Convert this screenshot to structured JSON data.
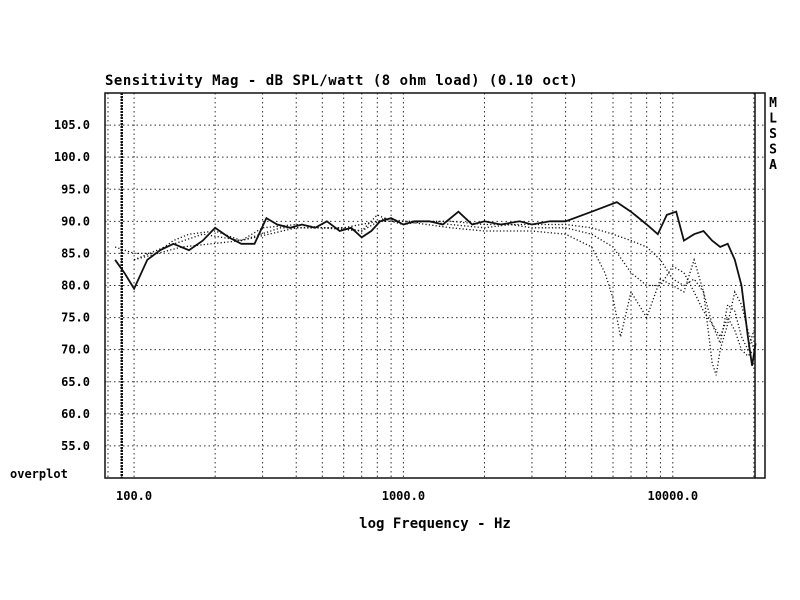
{
  "chart_data": {
    "type": "line",
    "title": "Sensitivity Mag - dB SPL/watt (8 ohm load) (0.10 oct)",
    "xlabel": "log Frequency - Hz",
    "ylabel": "",
    "x_scale": "log",
    "xlim": [
      78,
      22000
    ],
    "ylim": [
      50,
      110
    ],
    "x_ticks": [
      100,
      1000,
      10000
    ],
    "x_tick_labels": [
      "100.0",
      "1000.0",
      "10000.0"
    ],
    "y_ticks": [
      55,
      60,
      65,
      70,
      75,
      80,
      85,
      90,
      95,
      100,
      105
    ],
    "y_tick_labels": [
      "55.0",
      "60.0",
      "65.0",
      "70.0",
      "75.0",
      "80.0",
      "85.0",
      "90.0",
      "95.0",
      "100.0",
      "105.0"
    ],
    "bottom_label": "overplot",
    "side_letters": [
      "M",
      "L",
      "S",
      "S",
      "A"
    ],
    "grid": true,
    "series": [
      {
        "style": "solid",
        "points": [
          [
            85,
            84
          ],
          [
            92,
            82
          ],
          [
            100,
            79.5
          ],
          [
            112,
            84
          ],
          [
            125,
            85.5
          ],
          [
            140,
            86.5
          ],
          [
            160,
            85.5
          ],
          [
            180,
            87
          ],
          [
            200,
            89
          ],
          [
            225,
            87.5
          ],
          [
            250,
            86.5
          ],
          [
            280,
            86.5
          ],
          [
            310,
            90.5
          ],
          [
            340,
            89.5
          ],
          [
            380,
            89
          ],
          [
            420,
            89.5
          ],
          [
            470,
            89
          ],
          [
            520,
            90
          ],
          [
            580,
            88.5
          ],
          [
            640,
            89
          ],
          [
            700,
            87.5
          ],
          [
            760,
            88.5
          ],
          [
            820,
            90
          ],
          [
            900,
            90.5
          ],
          [
            1000,
            89.5
          ],
          [
            1100,
            90
          ],
          [
            1250,
            90
          ],
          [
            1400,
            89.5
          ],
          [
            1600,
            91.5
          ],
          [
            1800,
            89.5
          ],
          [
            2000,
            90
          ],
          [
            2300,
            89.5
          ],
          [
            2700,
            90
          ],
          [
            3000,
            89.5
          ],
          [
            3500,
            90
          ],
          [
            4000,
            90
          ],
          [
            5000,
            91.5
          ],
          [
            6200,
            93
          ],
          [
            7000,
            91.5
          ],
          [
            8000,
            89.5
          ],
          [
            8800,
            88
          ],
          [
            9500,
            91
          ],
          [
            10300,
            91.5
          ],
          [
            11000,
            87
          ],
          [
            12000,
            88
          ],
          [
            13000,
            88.5
          ],
          [
            14000,
            87
          ],
          [
            15000,
            86
          ],
          [
            16000,
            86.5
          ],
          [
            17000,
            84
          ],
          [
            18000,
            80
          ],
          [
            19000,
            72
          ],
          [
            19700,
            67.5
          ],
          [
            20300,
            71
          ]
        ]
      },
      {
        "style": "dotted",
        "points": [
          [
            85,
            86
          ],
          [
            100,
            85
          ],
          [
            120,
            85
          ],
          [
            140,
            87
          ],
          [
            160,
            88
          ],
          [
            200,
            88.5
          ],
          [
            250,
            87
          ],
          [
            300,
            89
          ],
          [
            400,
            89.5
          ],
          [
            500,
            89
          ],
          [
            600,
            89
          ],
          [
            700,
            88.5
          ],
          [
            800,
            91
          ],
          [
            900,
            90
          ],
          [
            1000,
            89.5
          ],
          [
            1200,
            90
          ],
          [
            1500,
            89.5
          ],
          [
            2000,
            89
          ],
          [
            2500,
            89.5
          ],
          [
            3000,
            89
          ],
          [
            4000,
            89
          ],
          [
            5000,
            88
          ],
          [
            6000,
            86
          ],
          [
            7000,
            82
          ],
          [
            8000,
            80
          ],
          [
            9000,
            80
          ],
          [
            10000,
            83
          ],
          [
            11000,
            82
          ],
          [
            12000,
            79
          ],
          [
            13000,
            76
          ],
          [
            14000,
            74
          ],
          [
            15000,
            72
          ],
          [
            16000,
            75
          ],
          [
            17000,
            73
          ],
          [
            18000,
            70
          ],
          [
            19000,
            69
          ],
          [
            20000,
            70
          ]
        ]
      },
      {
        "style": "dotted",
        "points": [
          [
            100,
            84
          ],
          [
            130,
            86
          ],
          [
            180,
            88
          ],
          [
            250,
            87
          ],
          [
            350,
            89
          ],
          [
            500,
            89
          ],
          [
            700,
            88.5
          ],
          [
            850,
            90.5
          ],
          [
            1000,
            90
          ],
          [
            1500,
            89
          ],
          [
            2000,
            88.5
          ],
          [
            3000,
            88.5
          ],
          [
            4000,
            88
          ],
          [
            5000,
            86
          ],
          [
            5600,
            82
          ],
          [
            6000,
            78
          ],
          [
            6400,
            72
          ],
          [
            7000,
            79
          ],
          [
            8000,
            75
          ],
          [
            9000,
            81
          ],
          [
            10000,
            80
          ],
          [
            11000,
            79
          ],
          [
            12000,
            84
          ],
          [
            13000,
            79
          ],
          [
            14000,
            74
          ],
          [
            15000,
            71
          ],
          [
            16000,
            77
          ],
          [
            17000,
            76
          ],
          [
            18000,
            72
          ],
          [
            19000,
            70
          ],
          [
            20000,
            73
          ]
        ]
      },
      {
        "style": "dotted",
        "points": [
          [
            100,
            84
          ],
          [
            150,
            86
          ],
          [
            250,
            87
          ],
          [
            400,
            89
          ],
          [
            600,
            89
          ],
          [
            800,
            90
          ],
          [
            1000,
            90
          ],
          [
            1500,
            90
          ],
          [
            2000,
            89.5
          ],
          [
            3000,
            89.5
          ],
          [
            4000,
            89.5
          ],
          [
            5000,
            89
          ],
          [
            6000,
            88
          ],
          [
            7000,
            87
          ],
          [
            8000,
            86
          ],
          [
            9000,
            84
          ],
          [
            10000,
            81
          ],
          [
            11000,
            80
          ],
          [
            12000,
            81
          ],
          [
            13000,
            79
          ],
          [
            14000,
            68
          ],
          [
            14500,
            66
          ],
          [
            15000,
            70
          ],
          [
            16000,
            74
          ],
          [
            17000,
            79
          ],
          [
            18000,
            77
          ],
          [
            19000,
            73
          ],
          [
            20000,
            70
          ]
        ]
      }
    ]
  }
}
